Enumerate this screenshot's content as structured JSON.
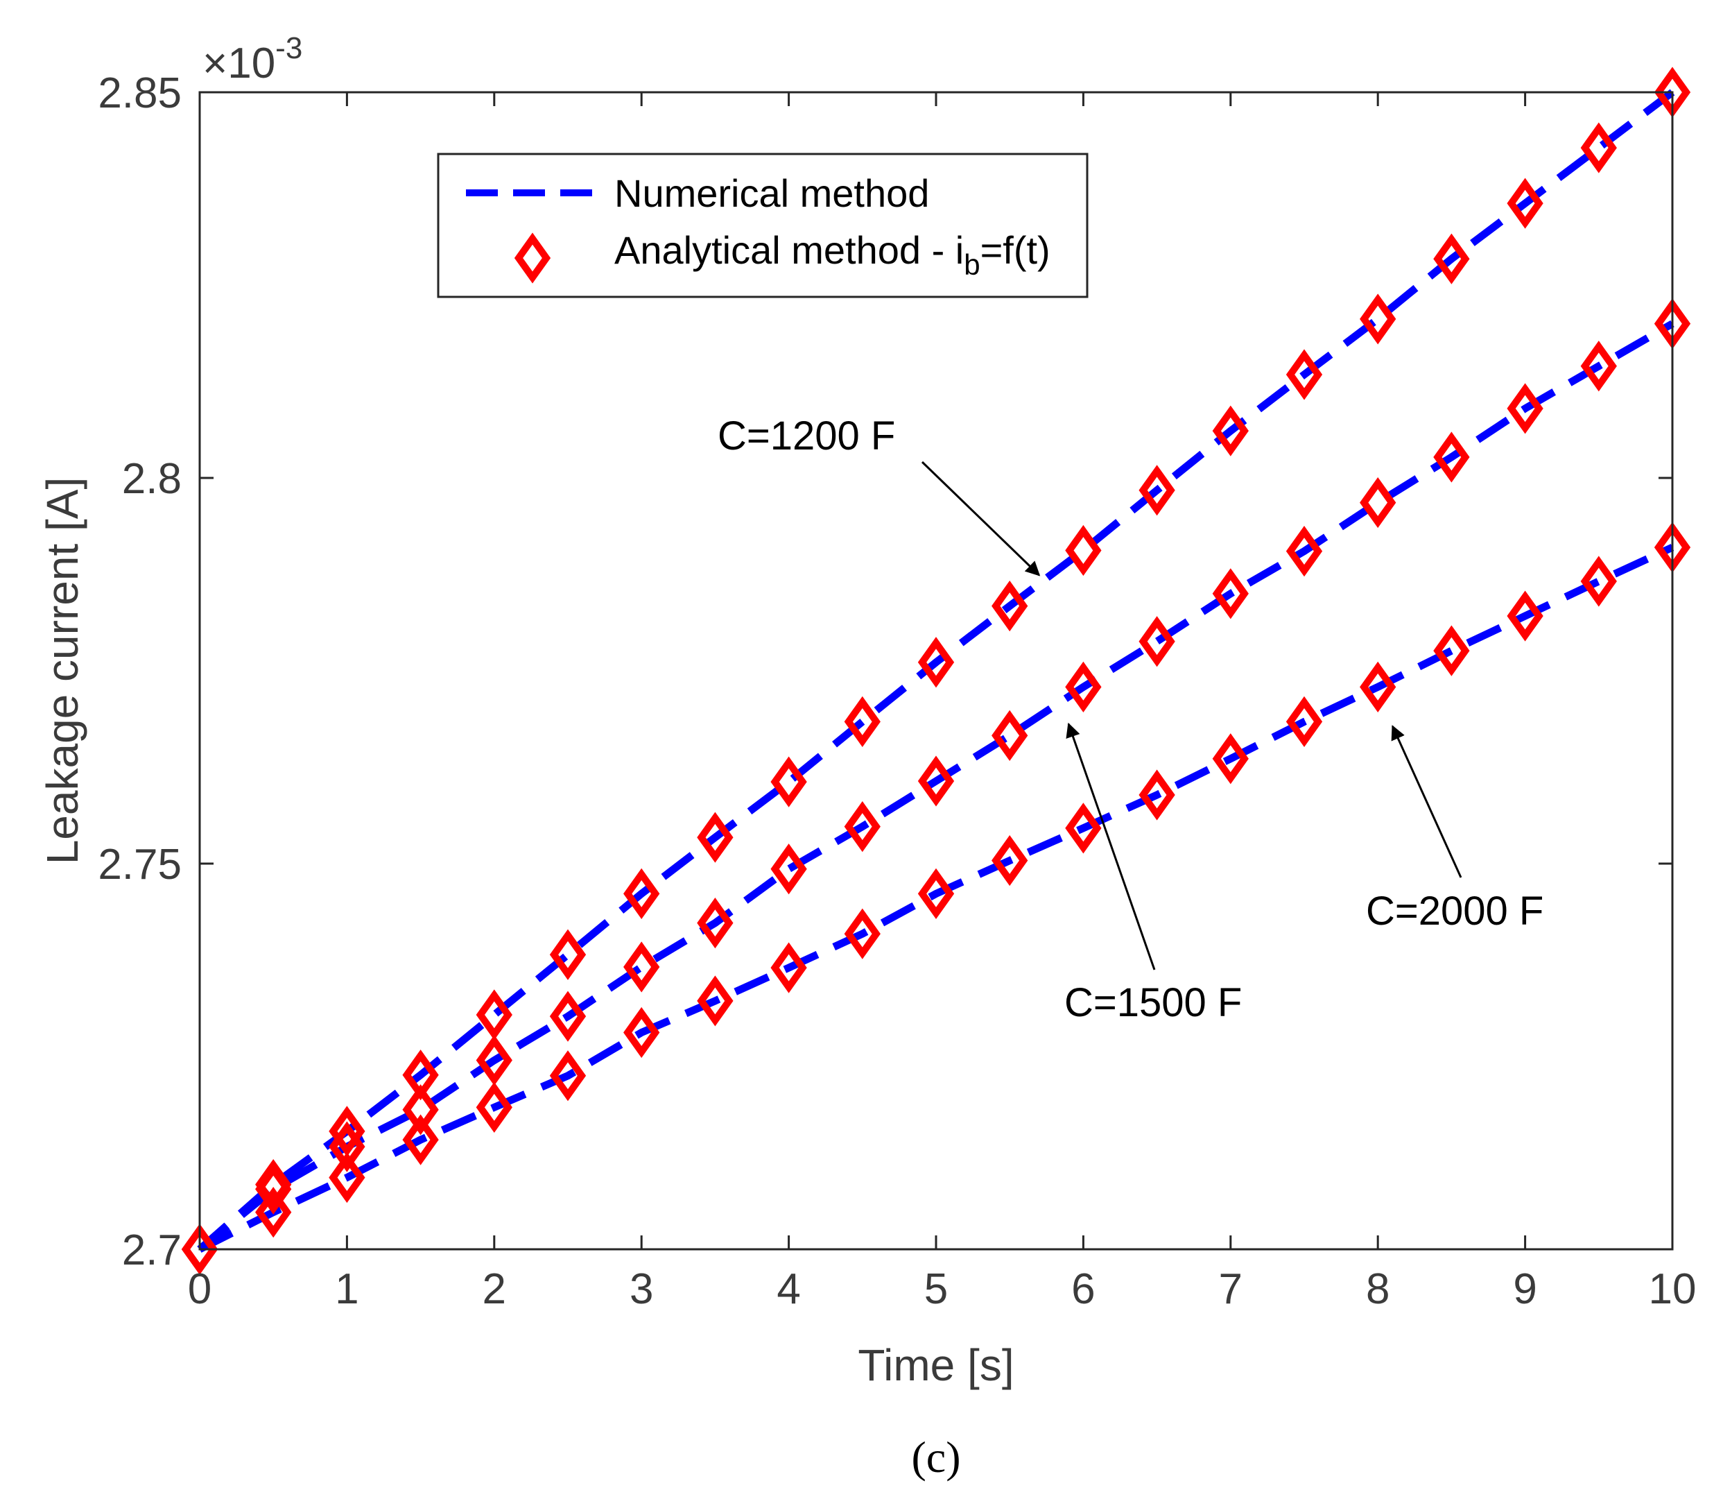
{
  "chart_data": {
    "type": "line",
    "title": "",
    "xlabel": "Time [s]",
    "ylabel": "Leakage current [A]",
    "y_exponent_label": "×10",
    "y_exponent_power": "-3",
    "xlim": [
      0,
      10
    ],
    "ylim": [
      2.7,
      2.85
    ],
    "x_ticks": [
      0,
      1,
      2,
      3,
      4,
      5,
      6,
      7,
      8,
      9,
      10
    ],
    "x_tick_labels": [
      "0",
      "1",
      "2",
      "3",
      "4",
      "5",
      "6",
      "7",
      "8",
      "9",
      "10"
    ],
    "y_ticks": [
      2.7,
      2.75,
      2.8,
      2.85
    ],
    "y_tick_labels": [
      "2.7",
      "2.75",
      "2.8",
      "2.85"
    ],
    "grid": false,
    "legend": {
      "placement": "top-left",
      "entries": [
        {
          "label": "Numerical method",
          "style": "dashed-line",
          "color": "#0000ff"
        },
        {
          "label_main": "Analytical method - i",
          "label_sub": "b",
          "label_tail": "=f(t)",
          "style": "diamond-marker",
          "color": "#ff0000"
        }
      ]
    },
    "x": [
      0,
      0.5,
      1,
      1.5,
      2,
      2.5,
      3,
      3.5,
      4,
      4.5,
      5,
      5.5,
      6,
      6.5,
      7,
      7.5,
      8,
      8.5,
      9,
      9.5,
      10
    ],
    "series": [
      {
        "name": "C=1200 F",
        "values": [
          2.7,
          2.7084,
          2.7153,
          2.7226,
          2.7304,
          2.7382,
          2.7461,
          2.7534,
          2.7606,
          2.7684,
          2.7761,
          2.7834,
          2.7906,
          2.7984,
          2.8061,
          2.8134,
          2.8206,
          2.8284,
          2.8356,
          2.8428,
          2.85
        ]
      },
      {
        "name": "C=1500 F",
        "values": [
          2.7,
          2.7078,
          2.7133,
          2.7181,
          2.7245,
          2.7302,
          2.7366,
          2.7423,
          2.7493,
          2.7548,
          2.7607,
          2.7666,
          2.7729,
          2.7788,
          2.785,
          2.7905,
          2.7968,
          2.8027,
          2.809,
          2.8145,
          2.82
        ]
      },
      {
        "name": "C=2000 F",
        "values": [
          2.7,
          2.7048,
          2.7093,
          2.7142,
          2.7184,
          2.7225,
          2.7281,
          2.7322,
          2.7365,
          2.7409,
          2.7461,
          2.7504,
          2.7546,
          2.7589,
          2.7636,
          2.7684,
          2.7729,
          2.7776,
          2.7821,
          2.7866,
          2.791
        ]
      }
    ],
    "annotations": [
      {
        "text": "C=1200 F",
        "points_to_x": 5.7,
        "points_to_y": 2.7874
      },
      {
        "text": "C=1500 F",
        "points_to_x": 5.9,
        "points_to_y": 2.7681
      },
      {
        "text": "C=2000 F",
        "points_to_x": 8.1,
        "points_to_y": 2.7678
      }
    ],
    "caption": "(c)"
  }
}
